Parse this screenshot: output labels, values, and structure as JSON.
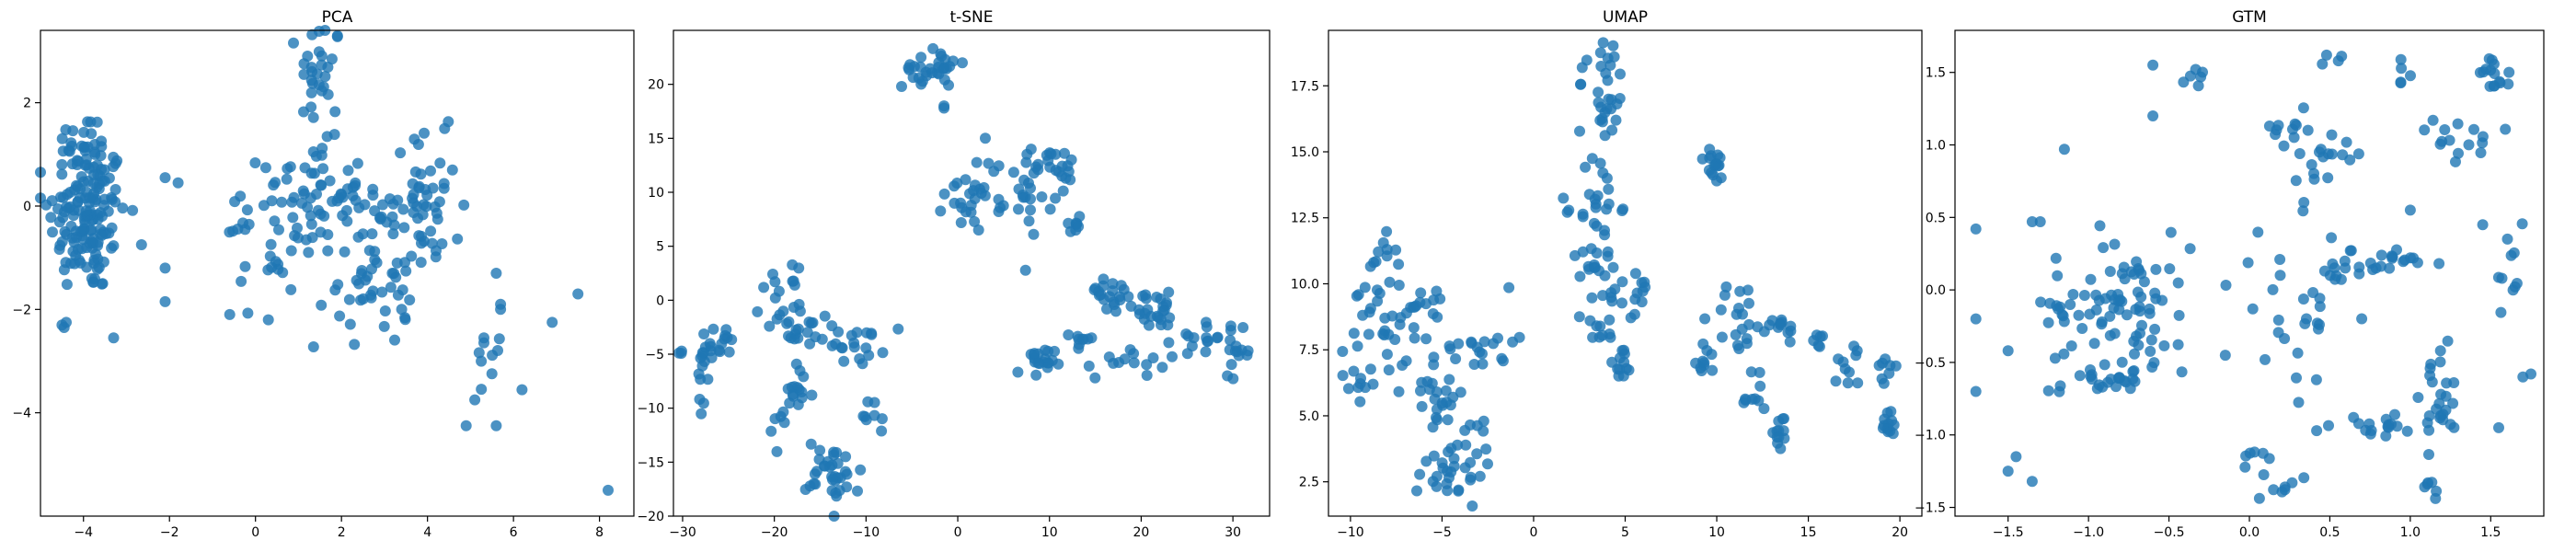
{
  "chart_data": [
    {
      "type": "scatter",
      "title": "PCA",
      "xlabel": "",
      "ylabel": "",
      "xlim": [
        -5.0,
        8.8
      ],
      "ylim": [
        -6.0,
        3.4
      ],
      "xticks": [
        -4,
        -2,
        0,
        2,
        4,
        6,
        8
      ],
      "yticks": [
        -4,
        -2,
        0,
        2
      ],
      "grid": false,
      "color": "#1f77b4",
      "clusters": [
        {
          "cx": -3.9,
          "cy": -0.2,
          "sx": 0.45,
          "sy": 0.75,
          "n": 150
        },
        {
          "cx": -4.0,
          "cy": 1.2,
          "sx": 0.3,
          "sy": 0.3,
          "n": 25
        },
        {
          "cx": 1.5,
          "cy": 2.6,
          "sx": 0.25,
          "sy": 0.55,
          "n": 30
        },
        {
          "cx": 1.3,
          "cy": 0.3,
          "sx": 0.6,
          "sy": 0.45,
          "n": 50
        },
        {
          "cx": 3.8,
          "cy": 0.0,
          "sx": 0.5,
          "sy": 0.7,
          "n": 60
        },
        {
          "cx": 2.8,
          "cy": -1.3,
          "sx": 0.45,
          "sy": 0.7,
          "n": 45
        },
        {
          "cx": 0.8,
          "cy": -1.0,
          "sx": 0.6,
          "sy": 0.6,
          "n": 30
        },
        {
          "cx": -0.6,
          "cy": -0.2,
          "sx": 0.5,
          "sy": 0.3,
          "n": 8
        },
        {
          "cx": 5.5,
          "cy": -3.1,
          "sx": 0.25,
          "sy": 0.4,
          "n": 10
        }
      ],
      "outliers": [
        [
          -4.5,
          -2.3
        ],
        [
          -4.4,
          -2.25
        ],
        [
          -4.45,
          -2.35
        ],
        [
          -2.1,
          -1.85
        ],
        [
          -2.1,
          -1.2
        ],
        [
          -2.1,
          0.55
        ],
        [
          -1.8,
          0.45
        ],
        [
          -3.3,
          -2.55
        ],
        [
          0.3,
          -2.2
        ],
        [
          -0.6,
          -2.1
        ],
        [
          5.1,
          -3.75
        ],
        [
          5.6,
          -4.25
        ],
        [
          4.9,
          -4.25
        ],
        [
          6.9,
          -2.25
        ],
        [
          7.5,
          -1.7
        ],
        [
          8.2,
          -5.5
        ],
        [
          5.7,
          -1.9
        ],
        [
          5.7,
          -2.0
        ],
        [
          5.6,
          -1.3
        ],
        [
          4.4,
          1.5
        ]
      ]
    },
    {
      "type": "scatter",
      "title": "t-SNE",
      "xlabel": "",
      "ylabel": "",
      "xlim": [
        -31.0,
        34.0
      ],
      "ylim": [
        -20.0,
        25.0
      ],
      "xticks": [
        -30,
        -20,
        -10,
        0,
        10,
        20,
        30
      ],
      "yticks": [
        -20,
        -15,
        -10,
        -5,
        0,
        5,
        10,
        15,
        20
      ],
      "grid": false,
      "color": "#1f77b4",
      "clusters": [
        {
          "cx": -27.0,
          "cy": -4.5,
          "sx": 1.5,
          "sy": 1.0,
          "n": 25
        },
        {
          "cx": -27.5,
          "cy": -7.5,
          "sx": 0.5,
          "sy": 1.2,
          "n": 6
        },
        {
          "cx": -19.5,
          "cy": 0.0,
          "sx": 1.0,
          "sy": 1.5,
          "n": 15
        },
        {
          "cx": -16.5,
          "cy": -2.5,
          "sx": 2.0,
          "sy": 1.0,
          "n": 20
        },
        {
          "cx": -17.5,
          "cy": -8.5,
          "sx": 0.9,
          "sy": 1.3,
          "n": 15
        },
        {
          "cx": -19.5,
          "cy": -12.0,
          "sx": 0.8,
          "sy": 1.2,
          "n": 6
        },
        {
          "cx": -13.5,
          "cy": -16.0,
          "sx": 1.5,
          "sy": 1.5,
          "n": 35
        },
        {
          "cx": -11.0,
          "cy": -4.0,
          "sx": 1.5,
          "sy": 1.0,
          "n": 20
        },
        {
          "cx": -9.5,
          "cy": -11.5,
          "sx": 0.6,
          "sy": 1.0,
          "n": 8
        },
        {
          "cx": -3.0,
          "cy": 21.5,
          "sx": 1.5,
          "sy": 0.9,
          "n": 30
        },
        {
          "cx": 2.0,
          "cy": 10.0,
          "sx": 1.7,
          "sy": 1.8,
          "n": 30
        },
        {
          "cx": 8.0,
          "cy": 10.5,
          "sx": 1.2,
          "sy": 2.0,
          "n": 25
        },
        {
          "cx": 11.5,
          "cy": 12.5,
          "sx": 0.7,
          "sy": 0.7,
          "n": 15
        },
        {
          "cx": 13.0,
          "cy": 7.0,
          "sx": 0.5,
          "sy": 0.7,
          "n": 8
        },
        {
          "cx": 8.5,
          "cy": -6.0,
          "sx": 1.0,
          "sy": 0.8,
          "n": 20
        },
        {
          "cx": 13.5,
          "cy": -4.0,
          "sx": 0.6,
          "sy": 0.7,
          "n": 10
        },
        {
          "cx": 16.5,
          "cy": 0.5,
          "sx": 1.5,
          "sy": 1.0,
          "n": 20
        },
        {
          "cx": 21.5,
          "cy": -1.0,
          "sx": 2.0,
          "sy": 0.8,
          "n": 25
        },
        {
          "cx": 18.5,
          "cy": -5.5,
          "sx": 2.0,
          "sy": 0.8,
          "n": 12
        },
        {
          "cx": 26.5,
          "cy": -3.5,
          "sx": 1.5,
          "sy": 0.9,
          "n": 15
        },
        {
          "cx": 30.5,
          "cy": -4.8,
          "sx": 0.7,
          "sy": 1.0,
          "n": 15
        }
      ],
      "outliers": [
        [
          -1.5,
          17.8
        ],
        [
          -1.5,
          18.0
        ],
        [
          0.5,
          22.0
        ],
        [
          3.0,
          15.0
        ],
        [
          8.0,
          14.0
        ]
      ]
    },
    {
      "type": "scatter",
      "title": "UMAP",
      "xlabel": "",
      "ylabel": "",
      "xlim": [
        -11.2,
        21.2
      ],
      "ylim": [
        1.2,
        19.6
      ],
      "xticks": [
        -10,
        -5,
        0,
        5,
        10,
        15,
        20
      ],
      "yticks": [
        2.5,
        5.0,
        7.5,
        10.0,
        12.5,
        15.0,
        17.5
      ],
      "ytick_labels": [
        "2.5",
        "5.0",
        "7.5",
        "10.0",
        "12.5",
        "15.0",
        "17.5"
      ],
      "grid": false,
      "color": "#1f77b4",
      "clusters": [
        {
          "cx": -8.5,
          "cy": 11.0,
          "sx": 0.5,
          "sy": 0.4,
          "n": 10
        },
        {
          "cx": -8.5,
          "cy": 8.0,
          "sx": 0.9,
          "sy": 1.3,
          "n": 25
        },
        {
          "cx": -6.5,
          "cy": 9.0,
          "sx": 1.2,
          "sy": 0.6,
          "n": 20
        },
        {
          "cx": -5.5,
          "cy": 6.0,
          "sx": 0.9,
          "sy": 0.9,
          "n": 25
        },
        {
          "cx": -4.5,
          "cy": 2.8,
          "sx": 0.9,
          "sy": 0.6,
          "n": 25
        },
        {
          "cx": -3.0,
          "cy": 7.8,
          "sx": 1.0,
          "sy": 0.6,
          "n": 20
        },
        {
          "cx": -3.0,
          "cy": 4.0,
          "sx": 0.6,
          "sy": 0.6,
          "n": 10
        },
        {
          "cx": -9.5,
          "cy": 6.0,
          "sx": 0.4,
          "sy": 0.4,
          "n": 8
        },
        {
          "cx": 3.8,
          "cy": 17.5,
          "sx": 0.7,
          "sy": 1.1,
          "n": 30
        },
        {
          "cx": 3.5,
          "cy": 13.0,
          "sx": 0.6,
          "sy": 1.0,
          "n": 25
        },
        {
          "cx": 3.2,
          "cy": 10.5,
          "sx": 0.4,
          "sy": 0.5,
          "n": 12
        },
        {
          "cx": 5.0,
          "cy": 9.8,
          "sx": 0.8,
          "sy": 0.6,
          "n": 20
        },
        {
          "cx": 3.5,
          "cy": 8.3,
          "sx": 0.5,
          "sy": 0.4,
          "n": 10
        },
        {
          "cx": 4.8,
          "cy": 6.8,
          "sx": 0.4,
          "sy": 0.5,
          "n": 12
        },
        {
          "cx": 9.8,
          "cy": 14.5,
          "sx": 0.4,
          "sy": 0.3,
          "n": 15
        },
        {
          "cx": 9.5,
          "cy": 7.1,
          "sx": 0.4,
          "sy": 0.3,
          "n": 10
        },
        {
          "cx": 11.3,
          "cy": 8.8,
          "sx": 0.8,
          "sy": 0.7,
          "n": 20
        },
        {
          "cx": 12.0,
          "cy": 6.0,
          "sx": 0.5,
          "sy": 0.6,
          "n": 10
        },
        {
          "cx": 13.5,
          "cy": 8.3,
          "sx": 0.4,
          "sy": 0.2,
          "n": 10
        },
        {
          "cx": 13.6,
          "cy": 4.4,
          "sx": 0.2,
          "sy": 0.3,
          "n": 12
        },
        {
          "cx": 15.5,
          "cy": 7.8,
          "sx": 0.3,
          "sy": 0.2,
          "n": 6
        },
        {
          "cx": 17.2,
          "cy": 6.8,
          "sx": 0.4,
          "sy": 0.5,
          "n": 10
        },
        {
          "cx": 19.3,
          "cy": 6.8,
          "sx": 0.3,
          "sy": 0.3,
          "n": 8
        },
        {
          "cx": 19.3,
          "cy": 4.8,
          "sx": 0.4,
          "sy": 0.3,
          "n": 12
        }
      ],
      "outliers": [
        [
          4.5,
          16.2
        ],
        [
          10.0,
          13.9
        ],
        [
          14.0,
          7.8
        ]
      ]
    },
    {
      "type": "scatter",
      "title": "GTM",
      "xlabel": "",
      "ylabel": "",
      "xlim": [
        -1.83,
        1.83
      ],
      "ylim": [
        -1.56,
        1.79
      ],
      "xticks": [
        -1.5,
        -1.0,
        -0.5,
        0.0,
        0.5,
        1.0,
        1.5
      ],
      "xtick_labels": [
        "−1.5",
        "−1.0",
        "−0.5",
        "0.0",
        "0.5",
        "1.0",
        "1.5"
      ],
      "yticks": [
        -1.5,
        -1.0,
        -0.5,
        0.0,
        0.5,
        1.0,
        1.5
      ],
      "ytick_labels": [
        "−1.5",
        "−1.0",
        "−0.5",
        "0.0",
        "0.5",
        "1.0",
        "1.5"
      ],
      "grid": false,
      "color": "#1f77b4",
      "clusters": [
        {
          "cx": -0.8,
          "cy": -0.1,
          "sx": 0.22,
          "sy": 0.25,
          "n": 90
        },
        {
          "cx": -0.9,
          "cy": -0.6,
          "sx": 0.15,
          "sy": 0.08,
          "n": 20
        },
        {
          "cx": -0.35,
          "cy": 1.5,
          "sx": 0.05,
          "sy": 0.04,
          "n": 6
        },
        {
          "cx": 0.55,
          "cy": 1.6,
          "sx": 0.03,
          "sy": 0.02,
          "n": 4
        },
        {
          "cx": 0.95,
          "cy": 1.45,
          "sx": 0.03,
          "sy": 0.06,
          "n": 5
        },
        {
          "cx": 1.55,
          "cy": 1.5,
          "sx": 0.06,
          "sy": 0.08,
          "n": 15
        },
        {
          "cx": 0.25,
          "cy": 1.1,
          "sx": 0.08,
          "sy": 0.06,
          "n": 12
        },
        {
          "cx": 0.5,
          "cy": 0.95,
          "sx": 0.12,
          "sy": 0.08,
          "n": 15
        },
        {
          "cx": 1.3,
          "cy": 1.0,
          "sx": 0.15,
          "sy": 0.08,
          "n": 15
        },
        {
          "cx": 0.6,
          "cy": 0.15,
          "sx": 0.12,
          "sy": 0.05,
          "n": 15
        },
        {
          "cx": 0.95,
          "cy": 0.22,
          "sx": 0.1,
          "sy": 0.03,
          "n": 12
        },
        {
          "cx": 0.3,
          "cy": -0.15,
          "sx": 0.2,
          "sy": 0.3,
          "n": 30
        },
        {
          "cx": 1.2,
          "cy": -0.6,
          "sx": 0.06,
          "sy": 0.15,
          "n": 15
        },
        {
          "cx": 1.15,
          "cy": -0.9,
          "sx": 0.08,
          "sy": 0.1,
          "n": 10
        },
        {
          "cx": 0.75,
          "cy": -0.95,
          "sx": 0.2,
          "sy": 0.05,
          "n": 18
        },
        {
          "cx": 0.05,
          "cy": -1.15,
          "sx": 0.05,
          "sy": 0.08,
          "n": 6
        },
        {
          "cx": 0.2,
          "cy": -1.35,
          "sx": 0.1,
          "sy": 0.05,
          "n": 8
        },
        {
          "cx": 1.15,
          "cy": -1.35,
          "sx": 0.03,
          "sy": 0.06,
          "n": 6
        },
        {
          "cx": 1.6,
          "cy": 0.2,
          "sx": 0.06,
          "sy": 0.2,
          "n": 10
        }
      ],
      "outliers": [
        [
          -1.7,
          0.42
        ],
        [
          -1.7,
          -0.2
        ],
        [
          -1.7,
          -0.7
        ],
        [
          -1.5,
          -1.25
        ],
        [
          -1.45,
          -1.15
        ],
        [
          -1.35,
          -1.32
        ],
        [
          -1.35,
          0.47
        ],
        [
          -1.15,
          0.97
        ],
        [
          -1.5,
          -0.42
        ],
        [
          -0.6,
          1.55
        ],
        [
          -0.6,
          1.2
        ],
        [
          -0.15,
          -0.45
        ],
        [
          1.0,
          0.55
        ],
        [
          1.45,
          0.45
        ],
        [
          1.75,
          -0.58
        ],
        [
          1.7,
          -0.6
        ],
        [
          1.55,
          -0.95
        ],
        [
          -1.3,
          0.47
        ]
      ]
    }
  ]
}
